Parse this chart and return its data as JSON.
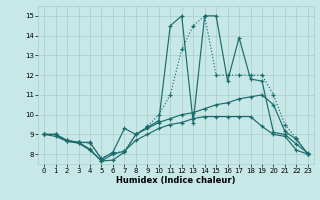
{
  "xlabel": "Humidex (Indice chaleur)",
  "xlim": [
    -0.5,
    23.5
  ],
  "ylim": [
    7.5,
    15.5
  ],
  "xticks": [
    0,
    1,
    2,
    3,
    4,
    5,
    6,
    7,
    8,
    9,
    10,
    11,
    12,
    13,
    14,
    15,
    16,
    17,
    18,
    19,
    20,
    21,
    22,
    23
  ],
  "yticks": [
    8,
    9,
    10,
    11,
    12,
    13,
    14,
    15
  ],
  "bg_color": "#c8e8e8",
  "line_color": "#1a6b6b",
  "grid_color": "#a8cccc",
  "series": [
    {
      "x": [
        0,
        1,
        2,
        3,
        4,
        5,
        6,
        7,
        8,
        9,
        10,
        11,
        12,
        13,
        14,
        15,
        16,
        17,
        18,
        19,
        20,
        21,
        22,
        23
      ],
      "y": [
        9.0,
        8.9,
        8.65,
        8.55,
        8.2,
        7.65,
        7.7,
        8.1,
        9.0,
        9.35,
        9.7,
        14.5,
        15.0,
        9.6,
        15.0,
        15.0,
        11.7,
        13.9,
        11.8,
        11.7,
        9.1,
        9.0,
        8.5,
        8.05
      ]
    },
    {
      "x": [
        0,
        1,
        2,
        3,
        4,
        5,
        6,
        7,
        8,
        9,
        10,
        11,
        12,
        13,
        14,
        15,
        16,
        17,
        18,
        19,
        20,
        21,
        22,
        23
      ],
      "y": [
        9.0,
        9.0,
        8.7,
        8.6,
        8.6,
        7.75,
        8.1,
        9.3,
        9.0,
        9.3,
        9.6,
        9.8,
        10.0,
        10.1,
        10.3,
        10.5,
        10.6,
        10.8,
        10.9,
        11.0,
        10.5,
        9.15,
        8.75,
        8.0
      ]
    },
    {
      "x": [
        0,
        1,
        2,
        3,
        4,
        5,
        6,
        7,
        8,
        9,
        10,
        11,
        12,
        13,
        14,
        15,
        16,
        17,
        18,
        19,
        20,
        21,
        22,
        23
      ],
      "y": [
        9.0,
        9.0,
        8.7,
        8.6,
        8.55,
        7.8,
        8.05,
        8.15,
        9.0,
        9.4,
        10.0,
        11.0,
        13.3,
        14.5,
        15.0,
        12.0,
        12.0,
        12.0,
        12.0,
        12.0,
        11.0,
        9.5,
        8.8,
        8.0
      ]
    },
    {
      "x": [
        0,
        1,
        2,
        3,
        4,
        5,
        6,
        7,
        8,
        9,
        10,
        11,
        12,
        13,
        14,
        15,
        16,
        17,
        18,
        19,
        20,
        21,
        22,
        23
      ],
      "y": [
        9.0,
        9.0,
        8.65,
        8.6,
        8.25,
        7.65,
        8.0,
        8.15,
        8.7,
        9.0,
        9.3,
        9.5,
        9.6,
        9.8,
        9.9,
        9.9,
        9.9,
        9.9,
        9.9,
        9.4,
        9.0,
        8.9,
        8.2,
        8.0
      ]
    }
  ]
}
